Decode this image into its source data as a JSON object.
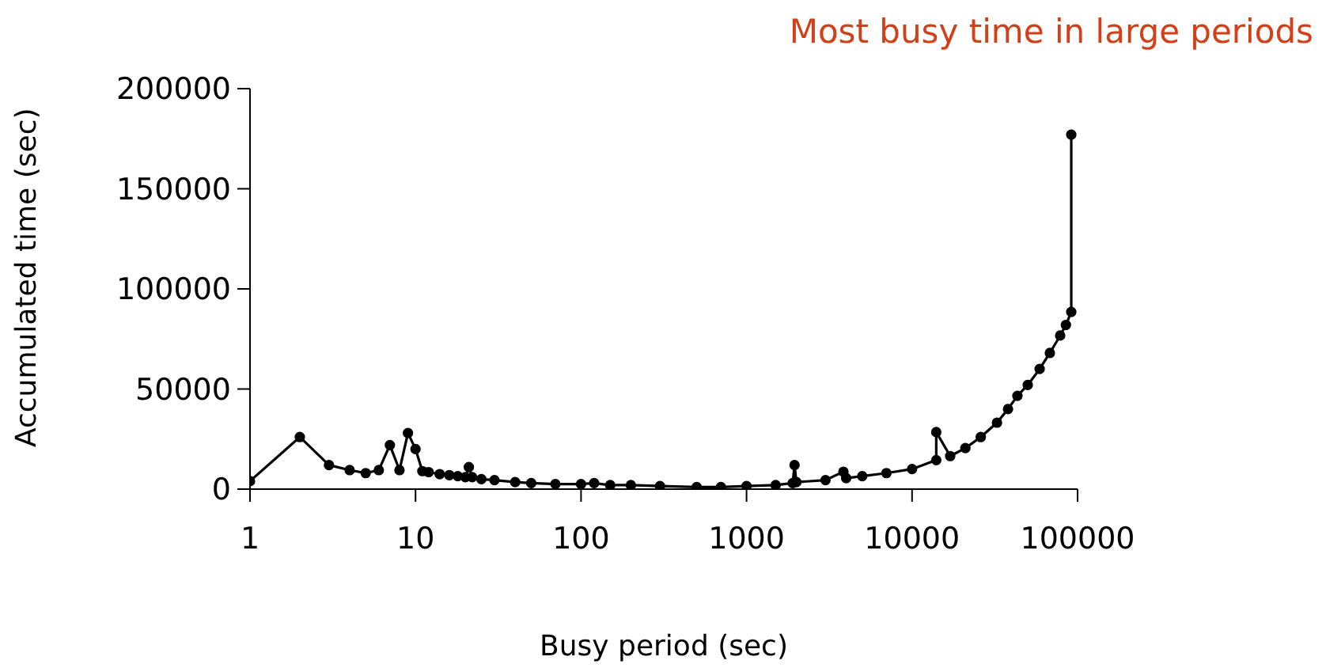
{
  "chart_data": {
    "type": "line",
    "title": "Most busy time in large periods",
    "xlabel": "Busy period (sec)",
    "ylabel": "Accumulated time (sec)",
    "x": [
      1,
      2,
      3,
      4,
      5,
      6,
      7,
      8,
      9,
      10,
      11,
      12,
      14,
      16,
      18,
      20,
      21,
      22,
      25,
      30,
      40,
      50,
      70,
      100,
      120,
      150,
      200,
      300,
      500,
      700,
      1000,
      1500,
      1900,
      1950,
      2000,
      3000,
      3850,
      4000,
      5000,
      7000,
      10000,
      14000,
      14000,
      17000,
      21000,
      26000,
      32600,
      38000,
      43300,
      50000,
      59000,
      68000,
      78500,
      85000,
      91600,
      91600
    ],
    "series": [
      {
        "color": "#000000",
        "values": [
          4000,
          26000,
          12000,
          9500,
          8000,
          9500,
          22000,
          9500,
          28000,
          20000,
          9000,
          8500,
          7500,
          7000,
          6500,
          6000,
          11000,
          6000,
          5000,
          4500,
          3500,
          3000,
          2500,
          2500,
          3000,
          2000,
          2000,
          1500,
          1000,
          1000,
          1500,
          2000,
          3000,
          12000,
          3500,
          4500,
          8700,
          5500,
          6500,
          8000,
          10000,
          14500,
          28500,
          16500,
          20500,
          26000,
          33200,
          40000,
          46600,
          52000,
          60000,
          68000,
          76700,
          82000,
          88500,
          177000
        ]
      }
    ],
    "log": "x",
    "xlim": [
      1,
      100000
    ],
    "xticks": [
      1,
      10,
      100,
      1000,
      10000,
      100000
    ],
    "ylim": [
      0,
      200000
    ],
    "yticks": [
      0,
      50000,
      100000,
      150000,
      200000
    ],
    "marker": "circle",
    "grid": false,
    "legend": false
  }
}
